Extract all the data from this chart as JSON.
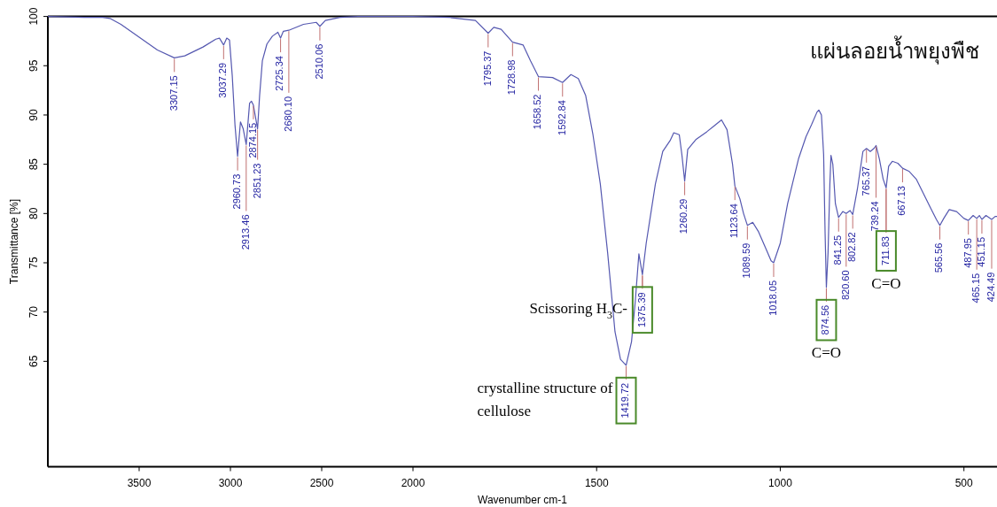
{
  "chart_data": [
    {
      "type": "line",
      "ylabel": "Transmittance [%]",
      "xlim": [
        4000,
        2000
      ],
      "xticks": [
        3500,
        3000,
        2500,
        2000
      ],
      "ylim": [
        54.3,
        100
      ],
      "yticks": [
        65,
        70,
        75,
        80,
        85,
        90,
        95,
        100
      ],
      "color": "#5558b0",
      "x": [
        4000,
        3800,
        3700,
        3660,
        3600,
        3500,
        3400,
        3307.15,
        3250,
        3150,
        3080,
        3060,
        3037.29,
        3020,
        3005,
        2990,
        2975,
        2960.73,
        2945,
        2930,
        2913.46,
        2895,
        2885,
        2874.15,
        2860,
        2851.23,
        2840,
        2825,
        2800,
        2770,
        2740,
        2725.34,
        2710,
        2680.1,
        2600,
        2530,
        2510.06,
        2480,
        2400,
        2300,
        2000
      ],
      "values": [
        100,
        99.9,
        99.9,
        99.8,
        99.2,
        97.9,
        96.6,
        95.8,
        96.0,
        96.9,
        97.7,
        97.8,
        97.1,
        97.8,
        97.6,
        94,
        89,
        85.8,
        89.3,
        88.6,
        87.0,
        91.2,
        91.4,
        91.0,
        89.5,
        88.6,
        92,
        95.5,
        97.2,
        98.0,
        98.4,
        97.8,
        98.5,
        98.6,
        99.2,
        99.4,
        99.0,
        99.6,
        99.9,
        100,
        100
      ],
      "annotations": [
        {
          "text": "3307.15",
          "x": 3307.15,
          "y": 95.8
        },
        {
          "text": "3037.29",
          "x": 3037.29,
          "y": 97.1
        },
        {
          "text": "2960.73",
          "x": 2960.73,
          "y": 85.8
        },
        {
          "text": "2913.46",
          "x": 2913.46,
          "y": 87.0
        },
        {
          "text": "2874.15",
          "x": 2874.15,
          "y": 91.0
        },
        {
          "text": "2851.23",
          "x": 2851.23,
          "y": 88.6
        },
        {
          "text": "2725.34",
          "x": 2725.34,
          "y": 97.8
        },
        {
          "text": "2680.10",
          "x": 2680.1,
          "y": 98.6
        },
        {
          "text": "2510.06",
          "x": 2510.06,
          "y": 99.0
        }
      ]
    },
    {
      "type": "line",
      "title": "แผ่นลอยน้ำพยุงพืช",
      "xlabel": "Wavenumber cm-1",
      "tick_labels": "x",
      "xlim": [
        2000,
        410
      ],
      "xticks": [
        1500,
        1000,
        500
      ],
      "ylim": [
        54.3,
        100
      ],
      "color": "#5558b0",
      "x": [
        2000,
        1900,
        1830,
        1795.37,
        1780,
        1760,
        1728.98,
        1700,
        1680,
        1658.52,
        1620,
        1592.84,
        1570,
        1550,
        1530,
        1510,
        1490,
        1470,
        1450,
        1435,
        1419.72,
        1405,
        1395,
        1385,
        1375.39,
        1365,
        1340,
        1320,
        1300,
        1290,
        1275,
        1268,
        1260.29,
        1252,
        1230,
        1200,
        1180,
        1160,
        1145,
        1130,
        1123.64,
        1110,
        1100,
        1089.59,
        1075,
        1060,
        1040,
        1025,
        1018.05,
        1000,
        980,
        950,
        930,
        915,
        900,
        895,
        888,
        882,
        878,
        874.56,
        870,
        865,
        862,
        857,
        850,
        841.25,
        830,
        820.6,
        810,
        802.82,
        790,
        775,
        765.37,
        755,
        745,
        739.24,
        730,
        720,
        711.83,
        705,
        695,
        680,
        667.13,
        650,
        630,
        610,
        590,
        575,
        565.56,
        555,
        540,
        520,
        500,
        487.95,
        475,
        465.15,
        458,
        451.15,
        440,
        424.49,
        415,
        410
      ],
      "values": [
        100,
        99.9,
        99.6,
        98.3,
        98.9,
        98.7,
        97.4,
        97.1,
        95.5,
        93.9,
        93.8,
        93.3,
        94.1,
        93.7,
        92,
        88,
        83,
        76,
        68,
        65.2,
        64.6,
        67,
        71,
        75.9,
        73.8,
        77,
        83,
        86.3,
        87.4,
        88.2,
        88.0,
        86,
        83.3,
        86.5,
        87.5,
        88.3,
        88.9,
        89.5,
        88.5,
        85,
        82.8,
        81.5,
        80,
        78.8,
        79.1,
        78.2,
        76.5,
        75.2,
        75.0,
        77,
        81,
        85.6,
        87.8,
        89,
        90.3,
        90.5,
        90,
        86,
        78,
        72.5,
        76,
        83,
        85.9,
        85,
        81,
        79.6,
        80.2,
        80.0,
        80.3,
        79.9,
        82.5,
        86.3,
        86.6,
        86.3,
        86.6,
        86.9,
        85.5,
        83.5,
        82.6,
        84.8,
        85.3,
        85.1,
        84.6,
        84.3,
        83.5,
        82,
        80.5,
        79.4,
        78.8,
        79.5,
        80.4,
        80.2,
        79.5,
        79.3,
        79.8,
        79.5,
        79.8,
        79.4,
        79.8,
        79.4,
        79.7,
        79.7
      ],
      "annotations": [
        {
          "text": "1795.37",
          "x": 1795.37,
          "y": 98.3
        },
        {
          "text": "1728.98",
          "x": 1728.98,
          "y": 97.4
        },
        {
          "text": "1658.52",
          "x": 1658.52,
          "y": 93.9
        },
        {
          "text": "1592.84",
          "x": 1592.84,
          "y": 93.3
        },
        {
          "text": "1419.72",
          "x": 1419.72,
          "y": 64.6
        },
        {
          "text": "1375.39",
          "x": 1375.39,
          "y": 73.8
        },
        {
          "text": "1260.29",
          "x": 1260.29,
          "y": 83.3
        },
        {
          "text": "1123.64",
          "x": 1123.64,
          "y": 82.8
        },
        {
          "text": "1089.59",
          "x": 1089.59,
          "y": 78.8
        },
        {
          "text": "1018.05",
          "x": 1018.05,
          "y": 75.0
        },
        {
          "text": "874.56",
          "x": 874.56,
          "y": 72.5
        },
        "C=O",
        {
          "text": "841.25",
          "x": 841.25,
          "y": 79.6
        },
        {
          "text": "820.60",
          "x": 820.6,
          "y": 80.0
        },
        {
          "text": "802.82",
          "x": 802.82,
          "y": 79.9
        },
        {
          "text": "765.37",
          "x": 765.37,
          "y": 86.6
        },
        {
          "text": "739.24",
          "x": 739.24,
          "y": 86.9
        },
        {
          "text": "711.83",
          "x": 711.83,
          "y": 82.6
        },
        "C=O",
        {
          "text": "667.13",
          "x": 667.13,
          "y": 84.6
        },
        {
          "text": "565.56",
          "x": 565.56,
          "y": 78.8
        },
        {
          "text": "487.95",
          "x": 487.95,
          "y": 79.3
        },
        {
          "text": "465.15",
          "x": 465.15,
          "y": 79.5
        },
        {
          "text": "451.15",
          "x": 451.15,
          "y": 79.4
        },
        {
          "text": "424.49",
          "x": 424.49,
          "y": 79.4
        },
        {
          "text": "Scissoring H$_{3}$C-",
          "x": 1375.39,
          "y": 73.8
        },
        {
          "text": "crystalline structure of cellulose",
          "x": 1419.72,
          "y": 64.6
        }
      ]
    }
  ]
}
